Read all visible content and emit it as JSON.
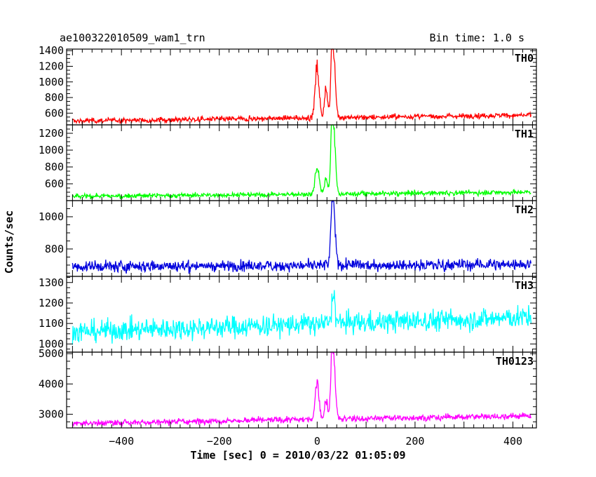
{
  "chart_data": {
    "type": "line",
    "title_left": "ae100322010509_wam1_trn",
    "title_right": "Bin time: 1.0 s",
    "xlabel": "Time [sec] 0 = 2010/03/22 01:05:09",
    "ylabel": "Counts/sec",
    "xlim": [
      -512,
      448
    ],
    "xticks": [
      -400,
      -200,
      0,
      200,
      400
    ],
    "grid": false,
    "panels": [
      {
        "name": "TH0",
        "color": "#ff0000",
        "ylim": [
          450,
          1420
        ],
        "yticks": [
          600,
          800,
          1000,
          1200,
          1400
        ],
        "series": {
          "base_start": 500,
          "base_end": 575,
          "noise": 55,
          "peaks": [
            [
              0,
              4,
              650
            ],
            [
              18,
              3,
              380
            ],
            [
              33,
              4,
              820
            ],
            [
              30,
              2,
              400
            ]
          ]
        }
      },
      {
        "name": "TH1",
        "color": "#00ff00",
        "ylim": [
          400,
          1300
        ],
        "yticks": [
          600,
          800,
          1000,
          1200
        ],
        "series": {
          "base_start": 450,
          "base_end": 500,
          "noise": 45,
          "peaks": [
            [
              0,
              4,
              330
            ],
            [
              18,
              3,
              180
            ],
            [
              33,
              4,
              800
            ],
            [
              30,
              2,
              400
            ]
          ]
        }
      },
      {
        "name": "TH2",
        "color": "#0000dd",
        "ylim": [
          630,
          1100
        ],
        "yticks": [
          800,
          1000
        ],
        "series": {
          "base_start": 690,
          "base_end": 705,
          "noise": 55,
          "peaks": [
            [
              33,
              4,
              380
            ],
            [
              30,
              2,
              100
            ]
          ]
        }
      },
      {
        "name": "TH3",
        "color": "#00ffff",
        "ylim": [
          960,
          1330
        ],
        "yticks": [
          1000,
          1100,
          1200,
          1300
        ],
        "series": {
          "base_start": 1060,
          "base_end": 1130,
          "noise": 85,
          "peaks": [
            [
              33,
              3,
              160
            ]
          ]
        }
      },
      {
        "name": "TH0123",
        "color": "#ff00ff",
        "ylim": [
          2550,
          5050
        ],
        "yticks": [
          3000,
          4000,
          5000
        ],
        "series": {
          "base_start": 2700,
          "base_end": 2950,
          "noise": 160,
          "peaks": [
            [
              0,
              4,
              1200
            ],
            [
              18,
              3,
              650
            ],
            [
              33,
              4,
              2100
            ],
            [
              30,
              2,
              900
            ]
          ]
        }
      }
    ]
  }
}
